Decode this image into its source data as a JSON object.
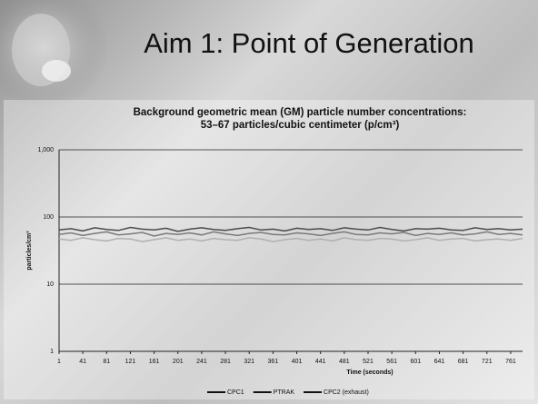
{
  "slide": {
    "title": "Aim 1: Point of Generation"
  },
  "chart_data": {
    "type": "line",
    "title": "Background geometric mean (GM) particle number concentrations:",
    "subtitle": "53–67 particles/cubic centimeter (p/cm³)",
    "x_label": "Time (seconds)",
    "y_label": "particles/cm³",
    "x": [
      1,
      21,
      41,
      61,
      81,
      101,
      121,
      141,
      161,
      181,
      201,
      221,
      241,
      261,
      281,
      301,
      321,
      341,
      361,
      381,
      401,
      421,
      441,
      461,
      481,
      501,
      521,
      541,
      561,
      581,
      601,
      621,
      641,
      661,
      681,
      701,
      721,
      741,
      761,
      781
    ],
    "series": [
      {
        "name": "CPC1",
        "color": "#4a4a4a",
        "values": [
          64,
          67,
          62,
          69,
          65,
          63,
          70,
          66,
          64,
          68,
          61,
          66,
          69,
          65,
          63,
          67,
          70,
          64,
          66,
          62,
          68,
          65,
          67,
          63,
          69,
          66,
          64,
          70,
          65,
          62,
          67,
          66,
          68,
          64,
          63,
          69,
          65,
          67,
          64,
          66
        ]
      },
      {
        "name": "PTRAK",
        "color": "#7a7a7a",
        "values": [
          55,
          58,
          53,
          57,
          60,
          54,
          56,
          59,
          52,
          57,
          55,
          58,
          54,
          60,
          56,
          53,
          57,
          59,
          55,
          54,
          58,
          56,
          53,
          57,
          60,
          55,
          54,
          58,
          56,
          59,
          53,
          57,
          55,
          58,
          54,
          56,
          60,
          55,
          57,
          54
        ]
      },
      {
        "name": "CPC2 (exhaust)",
        "color": "#b0b0b0",
        "values": [
          47,
          45,
          49,
          46,
          44,
          48,
          47,
          43,
          46,
          49,
          45,
          47,
          44,
          48,
          46,
          45,
          49,
          47,
          43,
          46,
          48,
          45,
          47,
          44,
          49,
          46,
          45,
          48,
          47,
          44,
          46,
          49,
          45,
          47,
          48,
          44,
          46,
          47,
          45,
          48
        ]
      }
    ],
    "xlim": [
      1,
      781
    ],
    "xticks": [
      1,
      41,
      81,
      121,
      161,
      201,
      241,
      281,
      321,
      361,
      401,
      441,
      481,
      521,
      561,
      601,
      641,
      681,
      721,
      761
    ],
    "ylim": [
      1,
      1000
    ],
    "yticks": [
      1,
      10,
      100,
      {
        "value": 1000,
        "label": "1,000"
      }
    ],
    "log_y": true,
    "grid": true,
    "legend": "bottom"
  }
}
